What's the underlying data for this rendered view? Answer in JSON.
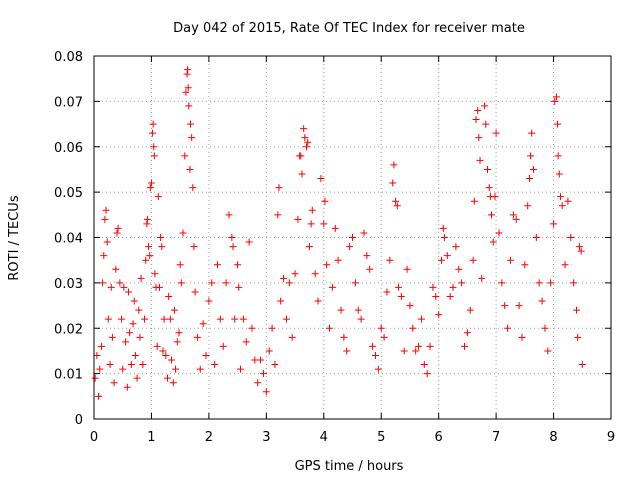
{
  "chart_data": {
    "type": "scatter",
    "title": "Day 042 of 2015, Rate Of TEC Index for receiver mate",
    "xlabel": "GPS time / hours",
    "ylabel": "ROTI / TECUs",
    "xlim": [
      0,
      9
    ],
    "ylim": [
      0,
      0.08
    ],
    "x_ticks": [
      "0",
      "1",
      "2",
      "3",
      "4",
      "5",
      "6",
      "7",
      "8",
      "9"
    ],
    "y_ticks": [
      "0",
      "0.01",
      "0.02",
      "0.03",
      "0.04",
      "0.05",
      "0.06",
      "0.07",
      "0.08"
    ],
    "grid": true,
    "marker": "+",
    "color": "#ff0000",
    "series": [
      {
        "name": "ROTI",
        "points": [
          [
            0.02,
            0.009
          ],
          [
            0.05,
            0.014
          ],
          [
            0.08,
            0.005
          ],
          [
            0.1,
            0.011
          ],
          [
            0.13,
            0.016
          ],
          [
            0.15,
            0.03
          ],
          [
            0.17,
            0.036
          ],
          [
            0.19,
            0.044
          ],
          [
            0.21,
            0.046
          ],
          [
            0.23,
            0.039
          ],
          [
            0.25,
            0.022
          ],
          [
            0.28,
            0.012
          ],
          [
            0.3,
            0.029
          ],
          [
            0.32,
            0.018
          ],
          [
            0.35,
            0.008
          ],
          [
            0.38,
            0.033
          ],
          [
            0.4,
            0.041
          ],
          [
            0.42,
            0.042
          ],
          [
            0.45,
            0.03
          ],
          [
            0.48,
            0.022
          ],
          [
            0.5,
            0.011
          ],
          [
            0.52,
            0.029
          ],
          [
            0.55,
            0.017
          ],
          [
            0.58,
            0.007
          ],
          [
            0.6,
            0.028
          ],
          [
            0.62,
            0.019
          ],
          [
            0.65,
            0.012
          ],
          [
            0.68,
            0.021
          ],
          [
            0.7,
            0.026
          ],
          [
            0.72,
            0.014
          ],
          [
            0.75,
            0.009
          ],
          [
            0.78,
            0.024
          ],
          [
            0.8,
            0.018
          ],
          [
            0.82,
            0.031
          ],
          [
            0.85,
            0.012
          ],
          [
            0.88,
            0.022
          ],
          [
            0.9,
            0.035
          ],
          [
            0.92,
            0.043
          ],
          [
            0.93,
            0.044
          ],
          [
            0.95,
            0.038
          ],
          [
            0.97,
            0.036
          ],
          [
            0.98,
            0.051
          ],
          [
            1.0,
            0.052
          ],
          [
            1.02,
            0.063
          ],
          [
            1.03,
            0.065
          ],
          [
            1.04,
            0.06
          ],
          [
            1.05,
            0.058
          ],
          [
            1.06,
            0.032
          ],
          [
            1.08,
            0.029
          ],
          [
            1.1,
            0.016
          ],
          [
            1.12,
            0.049
          ],
          [
            1.14,
            0.029
          ],
          [
            1.16,
            0.04
          ],
          [
            1.18,
            0.038
          ],
          [
            1.2,
            0.015
          ],
          [
            1.22,
            0.022
          ],
          [
            1.25,
            0.014
          ],
          [
            1.28,
            0.009
          ],
          [
            1.3,
            0.027
          ],
          [
            1.33,
            0.022
          ],
          [
            1.35,
            0.013
          ],
          [
            1.38,
            0.008
          ],
          [
            1.4,
            0.024
          ],
          [
            1.42,
            0.011
          ],
          [
            1.45,
            0.017
          ],
          [
            1.48,
            0.019
          ],
          [
            1.5,
            0.034
          ],
          [
            1.52,
            0.03
          ],
          [
            1.55,
            0.041
          ],
          [
            1.58,
            0.058
          ],
          [
            1.6,
            0.072
          ],
          [
            1.62,
            0.076
          ],
          [
            1.63,
            0.077
          ],
          [
            1.64,
            0.073
          ],
          [
            1.65,
            0.069
          ],
          [
            1.67,
            0.055
          ],
          [
            1.68,
            0.065
          ],
          [
            1.7,
            0.062
          ],
          [
            1.72,
            0.051
          ],
          [
            1.74,
            0.038
          ],
          [
            1.76,
            0.028
          ],
          [
            1.8,
            0.018
          ],
          [
            1.85,
            0.011
          ],
          [
            1.9,
            0.021
          ],
          [
            1.95,
            0.014
          ],
          [
            2.0,
            0.026
          ],
          [
            2.05,
            0.03
          ],
          [
            2.1,
            0.012
          ],
          [
            2.15,
            0.034
          ],
          [
            2.2,
            0.022
          ],
          [
            2.25,
            0.016
          ],
          [
            2.3,
            0.03
          ],
          [
            2.35,
            0.045
          ],
          [
            2.4,
            0.04
          ],
          [
            2.42,
            0.038
          ],
          [
            2.45,
            0.022
          ],
          [
            2.5,
            0.034
          ],
          [
            2.52,
            0.029
          ],
          [
            2.55,
            0.011
          ],
          [
            2.6,
            0.022
          ],
          [
            2.65,
            0.017
          ],
          [
            2.7,
            0.039
          ],
          [
            2.75,
            0.02
          ],
          [
            2.8,
            0.013
          ],
          [
            2.85,
            0.008
          ],
          [
            2.9,
            0.013
          ],
          [
            2.95,
            0.01
          ],
          [
            3.0,
            0.006
          ],
          [
            3.05,
            0.015
          ],
          [
            3.1,
            0.02
          ],
          [
            3.15,
            0.012
          ],
          [
            3.2,
            0.045
          ],
          [
            3.22,
            0.051
          ],
          [
            3.25,
            0.026
          ],
          [
            3.3,
            0.031
          ],
          [
            3.35,
            0.022
          ],
          [
            3.4,
            0.03
          ],
          [
            3.45,
            0.018
          ],
          [
            3.5,
            0.032
          ],
          [
            3.55,
            0.044
          ],
          [
            3.58,
            0.058
          ],
          [
            3.6,
            0.058
          ],
          [
            3.62,
            0.054
          ],
          [
            3.65,
            0.064
          ],
          [
            3.67,
            0.062
          ],
          [
            3.7,
            0.06
          ],
          [
            3.72,
            0.061
          ],
          [
            3.75,
            0.038
          ],
          [
            3.78,
            0.043
          ],
          [
            3.8,
            0.046
          ],
          [
            3.85,
            0.032
          ],
          [
            3.9,
            0.026
          ],
          [
            3.95,
            0.053
          ],
          [
            4.0,
            0.043
          ],
          [
            4.02,
            0.048
          ],
          [
            4.05,
            0.034
          ],
          [
            4.1,
            0.02
          ],
          [
            4.15,
            0.029
          ],
          [
            4.2,
            0.042
          ],
          [
            4.25,
            0.035
          ],
          [
            4.3,
            0.024
          ],
          [
            4.35,
            0.018
          ],
          [
            4.4,
            0.015
          ],
          [
            4.45,
            0.038
          ],
          [
            4.5,
            0.04
          ],
          [
            4.55,
            0.03
          ],
          [
            4.6,
            0.024
          ],
          [
            4.65,
            0.022
          ],
          [
            4.7,
            0.041
          ],
          [
            4.75,
            0.036
          ],
          [
            4.8,
            0.033
          ],
          [
            4.85,
            0.016
          ],
          [
            4.9,
            0.014
          ],
          [
            4.95,
            0.011
          ],
          [
            5.0,
            0.02
          ],
          [
            5.05,
            0.018
          ],
          [
            5.1,
            0.028
          ],
          [
            5.15,
            0.035
          ],
          [
            5.2,
            0.052
          ],
          [
            5.22,
            0.056
          ],
          [
            5.25,
            0.048
          ],
          [
            5.28,
            0.047
          ],
          [
            5.3,
            0.029
          ],
          [
            5.35,
            0.027
          ],
          [
            5.4,
            0.015
          ],
          [
            5.45,
            0.033
          ],
          [
            5.5,
            0.025
          ],
          [
            5.55,
            0.02
          ],
          [
            5.6,
            0.015
          ],
          [
            5.65,
            0.016
          ],
          [
            5.7,
            0.022
          ],
          [
            5.75,
            0.012
          ],
          [
            5.8,
            0.01
          ],
          [
            5.85,
            0.016
          ],
          [
            5.9,
            0.029
          ],
          [
            5.95,
            0.027
          ],
          [
            6.0,
            0.023
          ],
          [
            6.05,
            0.035
          ],
          [
            6.08,
            0.042
          ],
          [
            6.1,
            0.04
          ],
          [
            6.15,
            0.036
          ],
          [
            6.2,
            0.027
          ],
          [
            6.25,
            0.029
          ],
          [
            6.3,
            0.038
          ],
          [
            6.35,
            0.033
          ],
          [
            6.4,
            0.03
          ],
          [
            6.45,
            0.016
          ],
          [
            6.5,
            0.019
          ],
          [
            6.55,
            0.024
          ],
          [
            6.6,
            0.035
          ],
          [
            6.62,
            0.048
          ],
          [
            6.65,
            0.066
          ],
          [
            6.68,
            0.068
          ],
          [
            6.7,
            0.062
          ],
          [
            6.72,
            0.057
          ],
          [
            6.75,
            0.031
          ],
          [
            6.8,
            0.069
          ],
          [
            6.82,
            0.065
          ],
          [
            6.85,
            0.055
          ],
          [
            6.88,
            0.051
          ],
          [
            6.9,
            0.049
          ],
          [
            6.92,
            0.045
          ],
          [
            6.95,
            0.039
          ],
          [
            6.98,
            0.049
          ],
          [
            7.0,
            0.063
          ],
          [
            7.05,
            0.041
          ],
          [
            7.1,
            0.03
          ],
          [
            7.15,
            0.025
          ],
          [
            7.2,
            0.02
          ],
          [
            7.25,
            0.035
          ],
          [
            7.3,
            0.045
          ],
          [
            7.35,
            0.044
          ],
          [
            7.4,
            0.025
          ],
          [
            7.45,
            0.018
          ],
          [
            7.5,
            0.034
          ],
          [
            7.55,
            0.047
          ],
          [
            7.58,
            0.053
          ],
          [
            7.6,
            0.058
          ],
          [
            7.62,
            0.063
          ],
          [
            7.65,
            0.055
          ],
          [
            7.7,
            0.04
          ],
          [
            7.75,
            0.03
          ],
          [
            7.8,
            0.026
          ],
          [
            7.85,
            0.02
          ],
          [
            7.9,
            0.015
          ],
          [
            7.95,
            0.03
          ],
          [
            8.0,
            0.043
          ],
          [
            8.02,
            0.07
          ],
          [
            8.05,
            0.071
          ],
          [
            8.07,
            0.065
          ],
          [
            8.08,
            0.058
          ],
          [
            8.1,
            0.054
          ],
          [
            8.12,
            0.049
          ],
          [
            8.15,
            0.047
          ],
          [
            8.2,
            0.034
          ],
          [
            8.25,
            0.048
          ],
          [
            8.3,
            0.04
          ],
          [
            8.35,
            0.03
          ],
          [
            8.4,
            0.024
          ],
          [
            8.42,
            0.018
          ],
          [
            8.45,
            0.038
          ],
          [
            8.48,
            0.037
          ],
          [
            8.5,
            0.012
          ]
        ]
      }
    ]
  }
}
